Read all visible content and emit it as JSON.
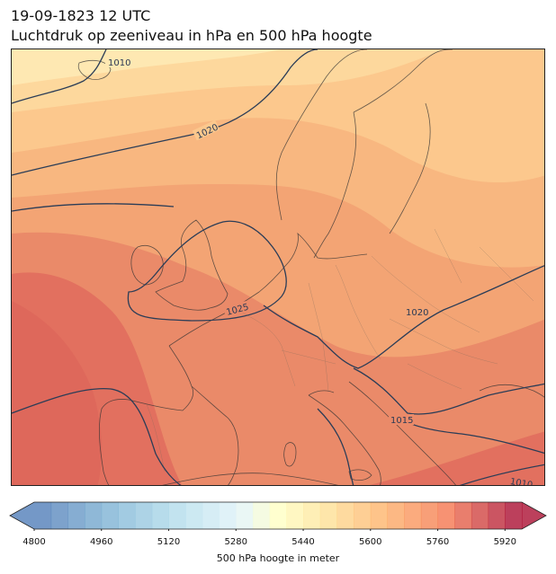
{
  "title": {
    "line1": "19-09-1823 12 UTC",
    "line2": "Luchtdruk op zeeniveau in hPa en 500 hPa hoogte"
  },
  "map": {
    "region": "Europe",
    "field": "500 hPa geopotential height (filled contours)",
    "isobar_labels": [
      "1010",
      "1020",
      "1025",
      "1020",
      "1015",
      "1010"
    ],
    "isobar_color": "#2b3d57"
  },
  "colorbar": {
    "label": "500 hPa hoogte in meter",
    "ticks": [
      "4800",
      "4960",
      "5120",
      "5280",
      "5440",
      "5600",
      "5760",
      "5920"
    ],
    "min": 4800,
    "max": 5960,
    "step": 40,
    "colormap": "RdYlBu_r",
    "extend": "both"
  }
}
